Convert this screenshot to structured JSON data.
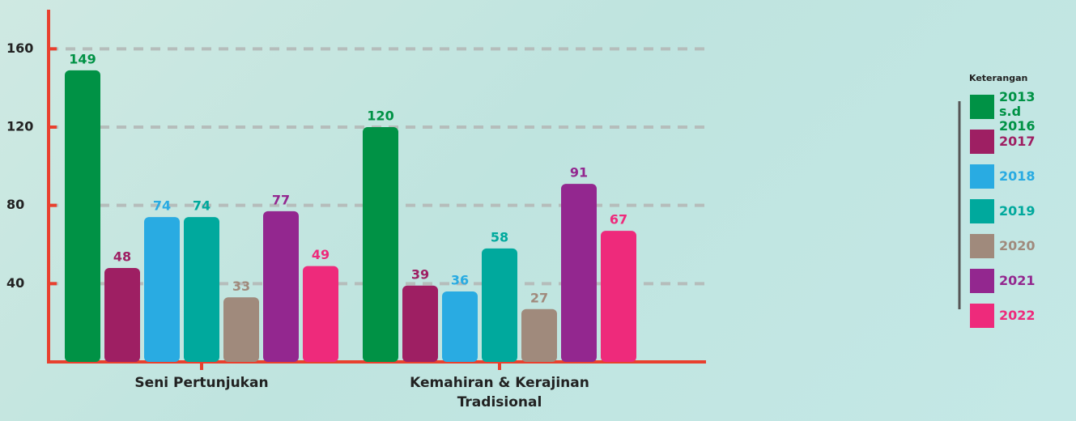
{
  "chart_data": {
    "type": "bar",
    "categories": [
      "Seni Pertunjukan",
      "Kemahiran & Kerajinan Tradisional"
    ],
    "series": [
      {
        "name": "2013 s.d 2016",
        "color": "#009245",
        "values": [
          149,
          120
        ]
      },
      {
        "name": "2017",
        "color": "#9e1f63",
        "values": [
          48,
          39
        ]
      },
      {
        "name": "2018",
        "color": "#29abe2",
        "values": [
          74,
          36
        ]
      },
      {
        "name": "2019",
        "color": "#00a99d",
        "values": [
          74,
          58
        ]
      },
      {
        "name": "2020",
        "color": "#a08a7c",
        "values": [
          33,
          27
        ]
      },
      {
        "name": "2021",
        "color": "#93278f",
        "values": [
          77,
          91
        ]
      },
      {
        "name": "2022",
        "color": "#ee2a7b",
        "values": [
          49,
          67
        ]
      }
    ],
    "ylim": [
      0,
      180
    ],
    "yticks": [
      40,
      80,
      120,
      160
    ],
    "grid": true,
    "legend_title": "Keterangan",
    "legend_position": "right"
  }
}
